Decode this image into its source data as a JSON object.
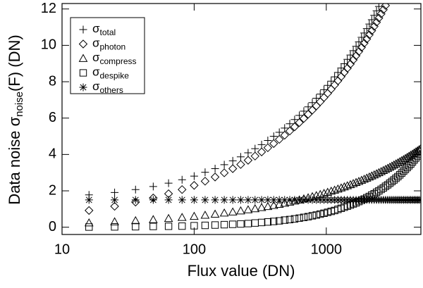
{
  "chart_data": {
    "type": "scatter",
    "x_label": "Flux value (DN)",
    "y_label": {
      "text": "Data noise σ",
      "subscript": "noise",
      "suffix": "(F) (DN)"
    },
    "xscale": "log",
    "xlim": [
      10,
      5200
    ],
    "xticks": [
      10,
      100,
      1000
    ],
    "ylim": [
      -0.4,
      12.3
    ],
    "yticks": [
      0,
      2,
      4,
      6,
      8,
      10,
      12
    ],
    "legend": "upper left",
    "x": [
      16,
      25,
      36,
      49,
      64,
      81,
      100,
      121,
      144,
      169,
      196,
      225,
      256,
      289,
      324,
      361,
      400,
      441,
      484,
      529,
      576,
      625,
      676,
      729,
      784,
      841,
      900,
      961,
      1024,
      1089,
      1156,
      1225,
      1296,
      1369,
      1444,
      1521,
      1600,
      1681,
      1764,
      1849,
      1936,
      2025,
      2116,
      2209,
      2304,
      2401,
      2500,
      2601,
      2704,
      2809,
      2916,
      3025,
      3136,
      3249,
      3364,
      3481,
      3600,
      3721,
      3844,
      3969,
      4096,
      4225,
      4356,
      4489,
      4624,
      4761,
      4900,
      5041,
      5184
    ],
    "series": [
      {
        "name": "σ",
        "subscript": "total",
        "marker": "plus",
        "color": "#000000",
        "values": [
          1.78,
          1.91,
          2.07,
          2.24,
          2.42,
          2.61,
          2.81,
          3.02,
          3.22,
          3.44,
          3.65,
          3.87,
          4.09,
          4.32,
          4.54,
          4.77,
          5.0,
          5.22,
          5.45,
          5.69,
          5.92,
          6.15,
          6.38,
          6.62,
          6.85,
          7.09,
          7.32,
          7.56,
          7.8,
          8.03,
          8.27,
          8.51,
          8.75,
          8.99,
          9.23,
          9.47,
          9.71,
          9.95,
          10.19,
          10.44,
          10.68,
          10.92,
          11.17,
          11.41,
          11.65,
          11.9,
          12.14,
          null,
          null,
          null,
          null,
          null,
          null,
          null,
          null,
          null,
          null,
          null,
          null,
          null,
          null,
          null,
          null,
          null,
          null,
          null,
          null,
          null,
          null
        ]
      },
      {
        "name": "σ",
        "subscript": "photon",
        "marker": "diamond",
        "color": "#000000",
        "values": [
          0.92,
          1.15,
          1.38,
          1.61,
          1.84,
          2.07,
          2.3,
          2.53,
          2.76,
          2.99,
          3.22,
          3.45,
          3.68,
          3.91,
          4.14,
          4.37,
          4.6,
          4.83,
          5.06,
          5.29,
          5.52,
          5.75,
          5.98,
          6.21,
          6.44,
          6.67,
          6.9,
          7.13,
          7.36,
          7.59,
          7.82,
          8.05,
          8.28,
          8.51,
          8.74,
          8.97,
          9.2,
          9.43,
          9.66,
          9.89,
          10.12,
          10.35,
          10.58,
          10.81,
          11.04,
          11.27,
          11.5,
          11.73,
          11.96,
          12.19,
          null,
          null,
          null,
          null,
          null,
          null,
          null,
          null,
          null,
          null,
          null,
          null,
          null,
          null,
          null,
          null,
          null,
          null,
          null
        ]
      },
      {
        "name": "σ",
        "subscript": "compress",
        "marker": "triangle",
        "color": "#000000",
        "values": [
          0.24,
          0.3,
          0.36,
          0.42,
          0.48,
          0.54,
          0.6,
          0.66,
          0.72,
          0.78,
          0.84,
          0.9,
          0.96,
          1.02,
          1.08,
          1.14,
          1.2,
          1.26,
          1.32,
          1.38,
          1.44,
          1.5,
          1.56,
          1.62,
          1.68,
          1.74,
          1.8,
          1.86,
          1.92,
          1.98,
          2.04,
          2.1,
          2.16,
          2.22,
          2.28,
          2.34,
          2.4,
          2.46,
          2.52,
          2.58,
          2.64,
          2.7,
          2.76,
          2.82,
          2.88,
          2.94,
          3.0,
          3.06,
          3.12,
          3.18,
          3.24,
          3.3,
          3.36,
          3.42,
          3.48,
          3.54,
          3.6,
          3.66,
          3.72,
          3.78,
          3.84,
          3.9,
          3.96,
          4.02,
          4.08,
          4.14,
          4.2,
          4.26,
          4.32
        ]
      },
      {
        "name": "σ",
        "subscript": "despike",
        "marker": "square",
        "color": "#000000",
        "values": [
          0.01,
          0.02,
          0.03,
          0.04,
          0.05,
          0.06,
          0.08,
          0.1,
          0.12,
          0.14,
          0.16,
          0.18,
          0.2,
          0.23,
          0.26,
          0.29,
          0.32,
          0.35,
          0.39,
          0.42,
          0.46,
          0.5,
          0.54,
          0.58,
          0.63,
          0.67,
          0.72,
          0.77,
          0.82,
          0.87,
          0.92,
          0.98,
          1.04,
          1.1,
          1.16,
          1.22,
          1.28,
          1.34,
          1.41,
          1.48,
          1.55,
          1.62,
          1.69,
          1.77,
          1.84,
          1.92,
          2.0,
          2.08,
          2.16,
          2.25,
          2.33,
          2.42,
          2.51,
          2.6,
          2.69,
          2.78,
          2.88,
          2.98,
          3.08,
          3.18,
          3.28,
          3.38,
          3.48,
          3.59,
          3.7,
          3.81,
          3.92,
          4.03,
          4.15
        ]
      },
      {
        "name": "σ",
        "subscript": "others",
        "marker": "asterisk",
        "color": "#000000",
        "values": [
          1.5,
          1.5,
          1.5,
          1.5,
          1.5,
          1.5,
          1.5,
          1.5,
          1.5,
          1.5,
          1.5,
          1.5,
          1.5,
          1.5,
          1.5,
          1.5,
          1.5,
          1.5,
          1.5,
          1.5,
          1.5,
          1.5,
          1.5,
          1.5,
          1.5,
          1.5,
          1.5,
          1.5,
          1.5,
          1.5,
          1.5,
          1.5,
          1.5,
          1.5,
          1.5,
          1.5,
          1.5,
          1.5,
          1.5,
          1.5,
          1.5,
          1.5,
          1.5,
          1.5,
          1.5,
          1.5,
          1.5,
          1.5,
          1.5,
          1.5,
          1.5,
          1.5,
          1.5,
          1.5,
          1.5,
          1.5,
          1.5,
          1.5,
          1.5,
          1.5,
          1.5,
          1.5,
          1.5,
          1.5,
          1.5,
          1.5,
          1.5,
          1.5,
          1.5
        ]
      }
    ]
  }
}
